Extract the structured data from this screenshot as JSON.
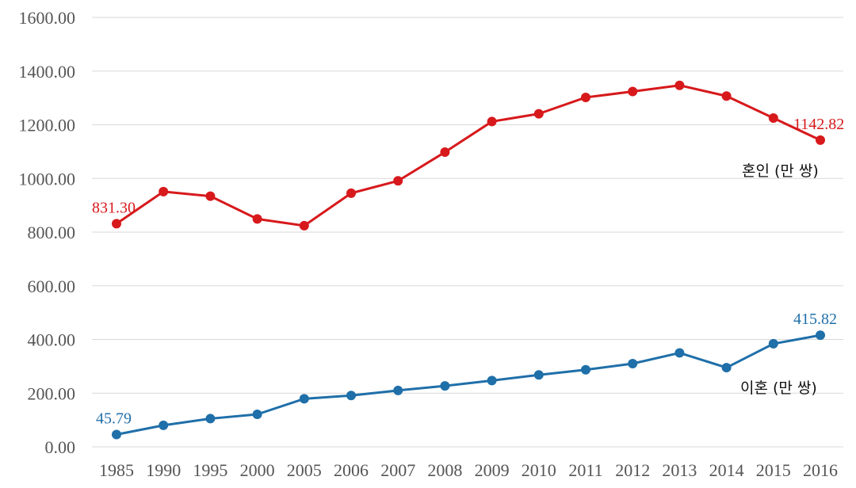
{
  "chart_data": {
    "type": "line",
    "title": "",
    "xlabel": "",
    "ylabel": "",
    "ylim": [
      0,
      1600
    ],
    "y_ticks": [
      "0.00",
      "200.00",
      "400.00",
      "600.00",
      "800.00",
      "1000.00",
      "1200.00",
      "1400.00",
      "1600.00"
    ],
    "grid": true,
    "categories": [
      "1985",
      "1990",
      "1995",
      "2000",
      "2005",
      "2006",
      "2007",
      "2008",
      "2009",
      "2010",
      "2011",
      "2012",
      "2013",
      "2014",
      "2015",
      "2016"
    ],
    "series": [
      {
        "name": "혼인 (만 쌍)",
        "color": "#d7191c",
        "values": [
          831.3,
          951,
          934,
          849,
          824,
          945,
          991,
          1098,
          1212,
          1241,
          1302,
          1324,
          1347,
          1307,
          1225,
          1142.82
        ],
        "labels": {
          "first": "831.30",
          "last": "1142.82"
        }
      },
      {
        "name": "이혼 (만 쌍)",
        "color": "#1f6fa9",
        "values": [
          45.79,
          80,
          105,
          121,
          179,
          191,
          210,
          227,
          247,
          268,
          287,
          310,
          350,
          295,
          384,
          415.82
        ],
        "labels": {
          "first": "45.79",
          "last": "415.82"
        }
      }
    ]
  }
}
